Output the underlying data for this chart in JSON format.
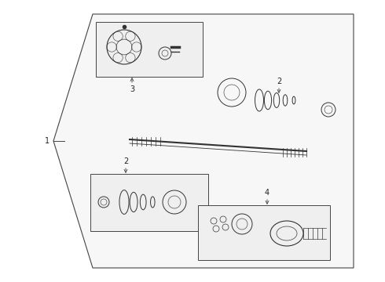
{
  "bg_color": "#ffffff",
  "line_color": "#444444",
  "fill_color": "#f5f5f5",
  "box_fill": "#eeeeee",
  "part_color": "#333333"
}
